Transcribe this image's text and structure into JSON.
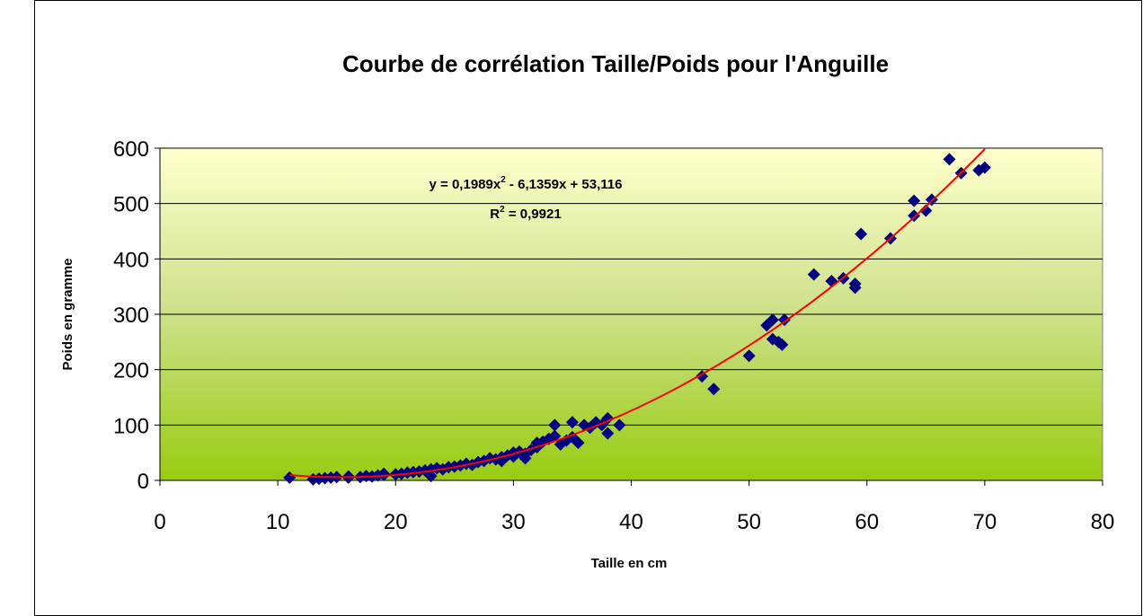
{
  "chart_data": {
    "type": "scatter",
    "title": "Courbe de corrélation Taille/Poids pour l'Anguille",
    "x_label": "Taille en cm",
    "y_label": "Poids en gramme",
    "xlim": [
      0,
      80
    ],
    "xticks": [
      0,
      10,
      20,
      30,
      40,
      50,
      60,
      70,
      80
    ],
    "ylim": [
      0,
      600
    ],
    "yticks": [
      0,
      100,
      200,
      300,
      400,
      500,
      600
    ],
    "grid": true,
    "color": "#000080",
    "x": [
      11,
      13,
      13.5,
      14,
      14.5,
      15,
      16,
      16,
      17,
      17.5,
      18,
      18.5,
      19,
      19,
      20,
      20.5,
      21,
      21.5,
      22,
      22.5,
      23,
      23,
      23.5,
      24,
      24.5,
      25,
      25.5,
      26,
      26.5,
      27,
      27.5,
      28,
      28.5,
      29,
      29,
      29.5,
      30,
      30,
      30.5,
      31,
      31,
      31.5,
      32,
      32,
      32.5,
      33,
      33.5,
      33.5,
      34,
      34.5,
      35,
      35,
      35.5,
      36,
      36.5,
      37,
      37.5,
      38,
      38,
      39,
      46,
      47,
      50,
      51.5,
      52,
      52,
      52.5,
      52.8,
      53,
      55.5,
      57,
      58,
      59,
      59,
      59.5,
      62,
      64,
      64,
      65,
      65.5,
      67,
      68,
      69.5,
      70
    ],
    "values": [
      5,
      2,
      3,
      4,
      5,
      6,
      5,
      7,
      6,
      8,
      7,
      9,
      12,
      10,
      11,
      12,
      14,
      15,
      16,
      18,
      20,
      8,
      22,
      20,
      24,
      25,
      27,
      30,
      28,
      33,
      35,
      40,
      38,
      42,
      35,
      45,
      43,
      50,
      52,
      48,
      40,
      55,
      60,
      68,
      70,
      75,
      100,
      80,
      65,
      72,
      105,
      78,
      68,
      100,
      95,
      105,
      100,
      112,
      85,
      100,
      188,
      165,
      225,
      280,
      290,
      255,
      250,
      245,
      290,
      372,
      360,
      365,
      355,
      348,
      445,
      437,
      505,
      478,
      487,
      507,
      580,
      555,
      560,
      565
    ],
    "trendline": {
      "equation": [
        "y = 0,1989x",
        "2",
        " - 6,1359x + 53,116"
      ],
      "r_squared": [
        "R",
        "2",
        " = 0,9921"
      ],
      "coefficients": [
        0.1989,
        -6.1359,
        53.116
      ],
      "color": "#ff0000"
    }
  }
}
